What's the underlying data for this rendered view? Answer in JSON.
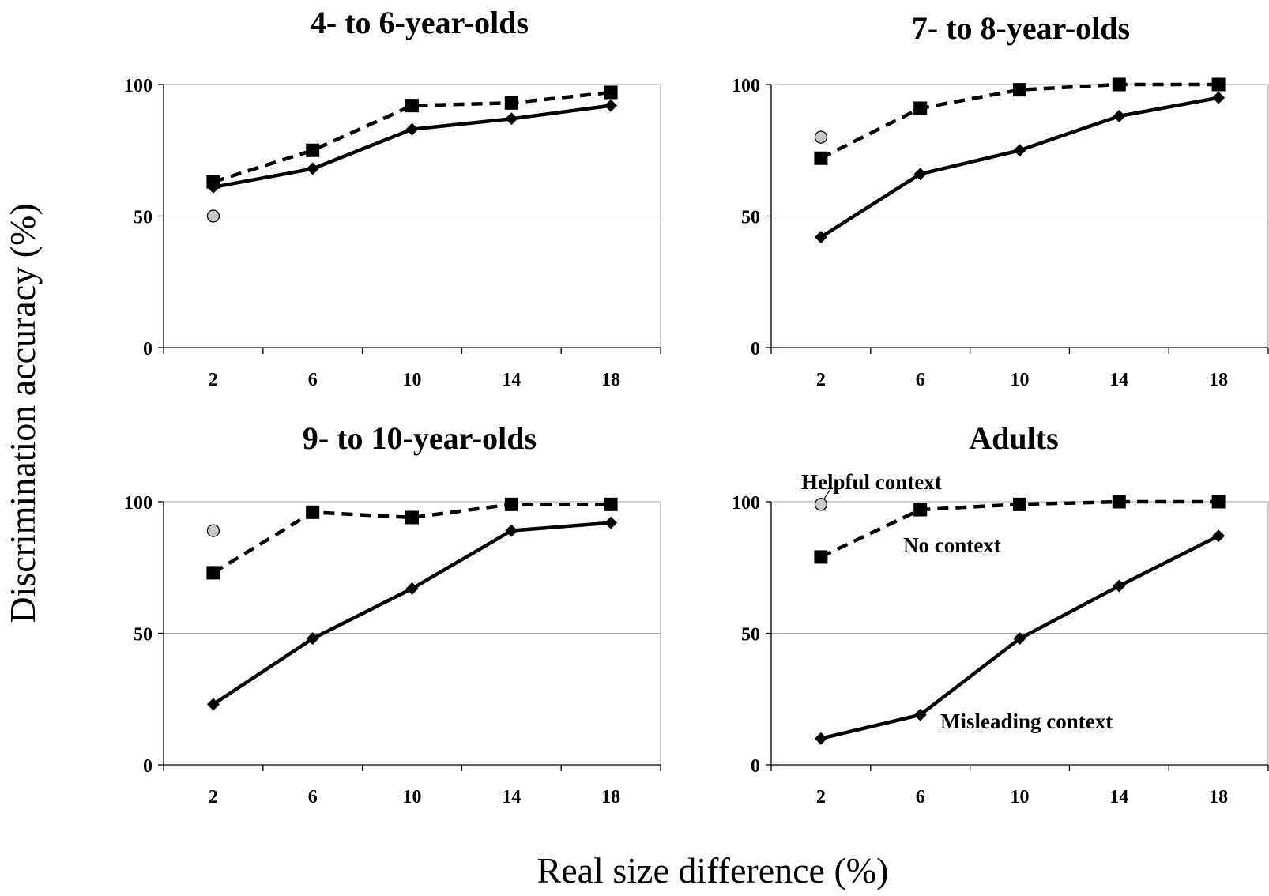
{
  "figure": {
    "ylabel": "Discrimination accuracy (%)",
    "xlabel": "Real size difference (%)",
    "annotations": {
      "helpful": "Helpful context",
      "none": "No context",
      "misleading": "Misleading context"
    }
  },
  "chart_data": [
    {
      "type": "line",
      "title": "4- to 6-year-olds",
      "x": [
        2,
        6,
        10,
        14,
        18
      ],
      "xticks": [
        "2",
        "6",
        "10",
        "14",
        "18"
      ],
      "ylim": [
        0,
        100
      ],
      "yticks": [
        "0",
        "50",
        "100"
      ],
      "grid": "horizontal at 50 and 100",
      "series": [
        {
          "name": "No context",
          "marker": "square",
          "line": "dashed",
          "values": [
            63,
            75,
            92,
            93,
            97
          ]
        },
        {
          "name": "Misleading context",
          "marker": "diamond",
          "line": "solid",
          "values": [
            61,
            68,
            83,
            87,
            92
          ]
        },
        {
          "name": "Helpful context",
          "marker": "circle",
          "line": "none",
          "x": [
            2
          ],
          "values": [
            50
          ]
        }
      ]
    },
    {
      "type": "line",
      "title": "7- to 8-year-olds",
      "x": [
        2,
        6,
        10,
        14,
        18
      ],
      "xticks": [
        "2",
        "6",
        "10",
        "14",
        "18"
      ],
      "ylim": [
        0,
        100
      ],
      "yticks": [
        "0",
        "50",
        "100"
      ],
      "grid": "horizontal at 50 and 100",
      "series": [
        {
          "name": "No context",
          "marker": "square",
          "line": "dashed",
          "values": [
            72,
            91,
            98,
            100,
            100
          ]
        },
        {
          "name": "Misleading context",
          "marker": "diamond",
          "line": "solid",
          "values": [
            42,
            66,
            75,
            88,
            95
          ]
        },
        {
          "name": "Helpful context",
          "marker": "circle",
          "line": "none",
          "x": [
            2
          ],
          "values": [
            80
          ]
        }
      ]
    },
    {
      "type": "line",
      "title": "9- to 10-year-olds",
      "x": [
        2,
        6,
        10,
        14,
        18
      ],
      "xticks": [
        "2",
        "6",
        "10",
        "14",
        "18"
      ],
      "ylim": [
        0,
        100
      ],
      "yticks": [
        "0",
        "50",
        "100"
      ],
      "grid": "horizontal at 50 and 100",
      "series": [
        {
          "name": "No context",
          "marker": "square",
          "line": "dashed",
          "values": [
            73,
            96,
            94,
            99,
            99
          ]
        },
        {
          "name": "Misleading context",
          "marker": "diamond",
          "line": "solid",
          "values": [
            23,
            48,
            67,
            89,
            92
          ]
        },
        {
          "name": "Helpful context",
          "marker": "circle",
          "line": "none",
          "x": [
            2
          ],
          "values": [
            89
          ]
        }
      ]
    },
    {
      "type": "line",
      "title": "Adults",
      "x": [
        2,
        6,
        10,
        14,
        18
      ],
      "xticks": [
        "2",
        "6",
        "10",
        "14",
        "18"
      ],
      "ylim": [
        0,
        100
      ],
      "yticks": [
        "0",
        "50",
        "100"
      ],
      "grid": "horizontal at 50 and 100",
      "series": [
        {
          "name": "No context",
          "marker": "square",
          "line": "dashed",
          "values": [
            79,
            97,
            99,
            100,
            100
          ]
        },
        {
          "name": "Misleading context",
          "marker": "diamond",
          "line": "solid",
          "values": [
            10,
            19,
            48,
            68,
            87
          ]
        },
        {
          "name": "Helpful context",
          "marker": "circle",
          "line": "none",
          "x": [
            2
          ],
          "values": [
            99
          ]
        }
      ]
    }
  ]
}
